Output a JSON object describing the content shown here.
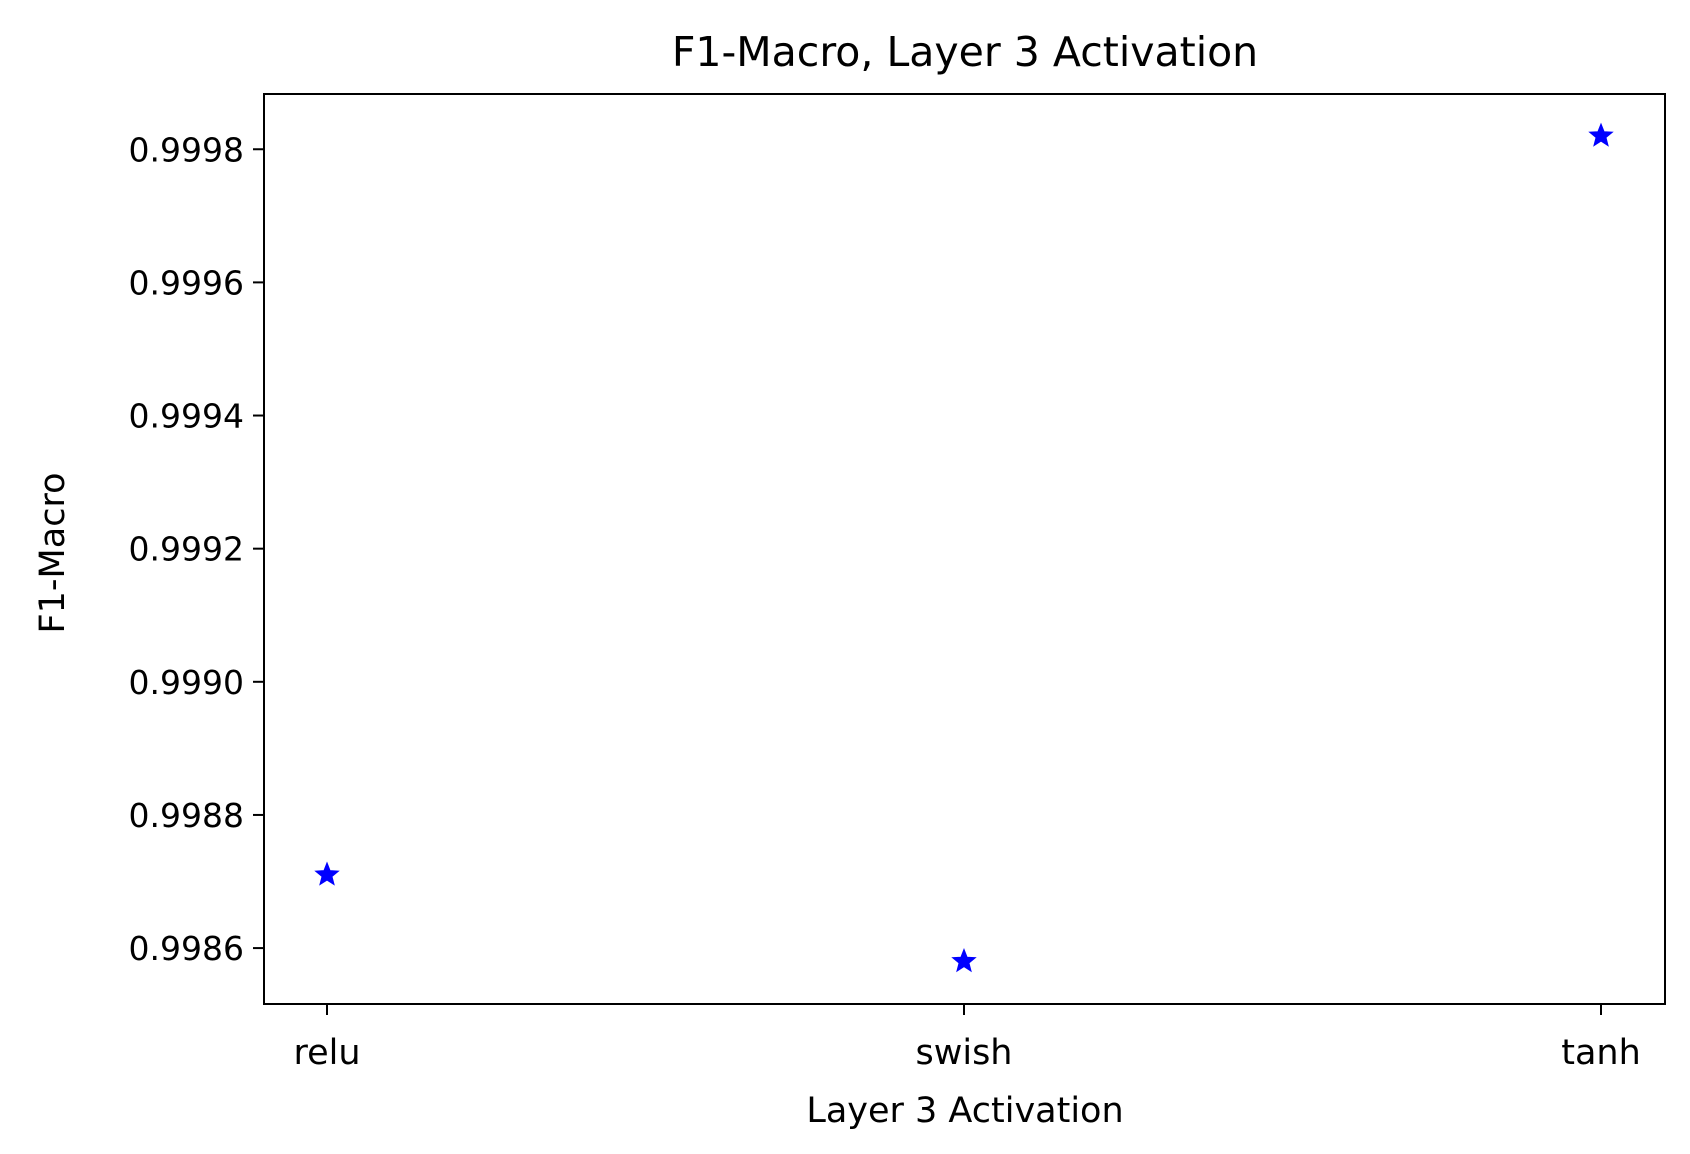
{
  "chart_data": {
    "type": "scatter",
    "title": "F1-Macro, Layer 3 Activation",
    "xlabel": "Layer 3 Activation",
    "ylabel": "F1-Macro",
    "categories": [
      "relu",
      "swish",
      "tanh"
    ],
    "series": [
      {
        "values": [
          0.99871,
          0.99858,
          0.99982
        ],
        "color": "#0000ff",
        "marker": "star"
      }
    ],
    "yticks": [
      "0.9986",
      "0.9988",
      "0.9990",
      "0.9992",
      "0.9994",
      "0.9996",
      "0.9998"
    ],
    "ylim": [
      0.998516,
      0.999883
    ],
    "grid": false
  }
}
